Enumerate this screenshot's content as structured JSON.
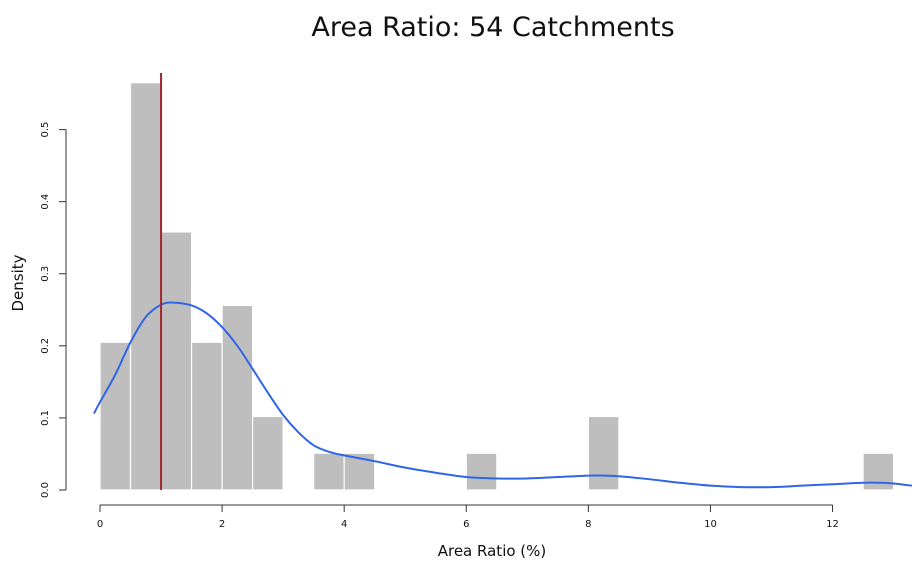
{
  "chart_data": {
    "type": "bar",
    "title": "Area Ratio: 54 Catchments",
    "xlabel": "Area Ratio (%)",
    "ylabel": "Density",
    "xlim": [
      0,
      13.4
    ],
    "ylim": [
      0,
      0.6
    ],
    "x_ticks": [
      0,
      2,
      4,
      6,
      8,
      10,
      12
    ],
    "y_ticks": [
      0.0,
      0.1,
      0.2,
      0.3,
      0.4,
      0.5
    ],
    "histogram": {
      "bin_width": 0.5,
      "bins": [
        {
          "x0": 0.0,
          "x1": 0.5,
          "density": 0.205
        },
        {
          "x0": 0.5,
          "x1": 1.0,
          "density": 0.565
        },
        {
          "x0": 1.0,
          "x1": 1.5,
          "density": 0.358
        },
        {
          "x0": 1.5,
          "x1": 2.0,
          "density": 0.205
        },
        {
          "x0": 2.0,
          "x1": 2.5,
          "density": 0.256
        },
        {
          "x0": 2.5,
          "x1": 3.0,
          "density": 0.102
        },
        {
          "x0": 3.5,
          "x1": 4.0,
          "density": 0.051
        },
        {
          "x0": 4.0,
          "x1": 4.5,
          "density": 0.051
        },
        {
          "x0": 6.0,
          "x1": 6.5,
          "density": 0.051
        },
        {
          "x0": 8.0,
          "x1": 8.5,
          "density": 0.102
        },
        {
          "x0": 12.5,
          "x1": 13.0,
          "density": 0.051
        }
      ]
    },
    "density_curve": {
      "x": [
        -0.1,
        0.0,
        0.25,
        0.5,
        0.75,
        1.0,
        1.2,
        1.5,
        1.75,
        2.0,
        2.25,
        2.5,
        2.75,
        3.0,
        3.25,
        3.5,
        3.75,
        4.0,
        4.5,
        5.0,
        5.5,
        6.0,
        6.5,
        7.0,
        7.5,
        8.0,
        8.25,
        8.5,
        9.0,
        9.5,
        10.0,
        10.5,
        11.0,
        11.5,
        12.0,
        12.5,
        12.8,
        13.0,
        13.3
      ],
      "y": [
        0.106,
        0.122,
        0.16,
        0.205,
        0.24,
        0.257,
        0.26,
        0.256,
        0.245,
        0.226,
        0.2,
        0.168,
        0.135,
        0.104,
        0.08,
        0.062,
        0.053,
        0.048,
        0.04,
        0.031,
        0.024,
        0.018,
        0.016,
        0.016,
        0.018,
        0.02,
        0.02,
        0.019,
        0.015,
        0.01,
        0.006,
        0.004,
        0.004,
        0.006,
        0.008,
        0.01,
        0.01,
        0.009,
        0.006
      ]
    },
    "vline_x": 1.0,
    "colors": {
      "bars": "#bebebe",
      "bar_border": "#ffffff",
      "curve": "#2f66e6",
      "vline": "#a3262a",
      "axis": "#333333"
    },
    "grid": false
  }
}
